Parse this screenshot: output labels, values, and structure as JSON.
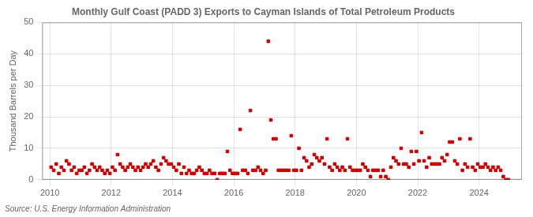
{
  "chart_data": {
    "type": "scatter",
    "title": "Monthly Gulf Coast (PADD 3) Exports to Cayman Islands of Total Petroleum Products",
    "y_label": "Thousand Barrels per Day",
    "annotations": [
      "Source: U.S. Energy Information Administration"
    ],
    "color": "#cc0000",
    "marker": "square",
    "grid": true,
    "xlim": [
      2009.75,
      2025.4
    ],
    "xticks": [
      2010,
      2012,
      2014,
      2016,
      2018,
      2020,
      2022,
      2024
    ],
    "ylim": [
      0,
      50
    ],
    "yticks": [
      0,
      10,
      20,
      30,
      40,
      50
    ],
    "x": [
      2010.041666666667,
      2010.125,
      2010.208333333333,
      2010.291666666667,
      2010.375,
      2010.458333333333,
      2010.541666666667,
      2010.625,
      2010.708333333333,
      2010.791666666667,
      2010.875,
      2010.958333333333,
      2011.041666666667,
      2011.125,
      2011.208333333333,
      2011.291666666667,
      2011.375,
      2011.458333333333,
      2011.541666666667,
      2011.625,
      2011.708333333333,
      2011.791666666667,
      2011.875,
      2011.958333333333,
      2012.041666666667,
      2012.125,
      2012.208333333333,
      2012.291666666667,
      2012.375,
      2012.458333333333,
      2012.541666666667,
      2012.625,
      2012.708333333333,
      2012.791666666667,
      2012.875,
      2012.958333333333,
      2013.041666666667,
      2013.125,
      2013.208333333333,
      2013.291666666667,
      2013.375,
      2013.458333333333,
      2013.541666666667,
      2013.625,
      2013.708333333333,
      2013.791666666667,
      2013.875,
      2013.958333333333,
      2014.041666666667,
      2014.125,
      2014.208333333333,
      2014.291666666667,
      2014.375,
      2014.458333333333,
      2014.541666666667,
      2014.625,
      2014.708333333333,
      2014.791666666667,
      2014.875,
      2014.958333333333,
      2015.041666666667,
      2015.125,
      2015.208333333333,
      2015.291666666667,
      2015.375,
      2015.458333333333,
      2015.541666666667,
      2015.625,
      2015.708333333333,
      2015.791666666667,
      2015.875,
      2015.958333333333,
      2016.041666666667,
      2016.125,
      2016.208333333333,
      2016.291666666667,
      2016.375,
      2016.458333333333,
      2016.541666666667,
      2016.625,
      2016.708333333333,
      2016.791666666667,
      2016.875,
      2016.958333333333,
      2017.041666666667,
      2017.125,
      2017.208333333333,
      2017.291666666667,
      2017.375,
      2017.458333333333,
      2017.541666666667,
      2017.625,
      2017.708333333333,
      2017.791666666667,
      2017.875,
      2017.958333333333,
      2018.041666666667,
      2018.125,
      2018.208333333333,
      2018.291666666667,
      2018.375,
      2018.458333333333,
      2018.541666666667,
      2018.625,
      2018.708333333333,
      2018.791666666667,
      2018.875,
      2018.958333333333,
      2019.041666666667,
      2019.125,
      2019.208333333333,
      2019.291666666667,
      2019.375,
      2019.458333333333,
      2019.541666666667,
      2019.625,
      2019.708333333333,
      2019.791666666667,
      2019.875,
      2019.958333333333,
      2020.041666666667,
      2020.125,
      2020.208333333333,
      2020.291666666667,
      2020.375,
      2020.458333333333,
      2020.541666666667,
      2020.625,
      2020.708333333333,
      2020.791666666667,
      2020.875,
      2020.958333333333,
      2021.041666666667,
      2021.125,
      2021.208333333333,
      2021.291666666667,
      2021.375,
      2021.458333333333,
      2021.541666666667,
      2021.625,
      2021.708333333333,
      2021.791666666667,
      2021.875,
      2021.958333333333,
      2022.041666666667,
      2022.125,
      2022.208333333333,
      2022.291666666667,
      2022.375,
      2022.458333333333,
      2022.541666666667,
      2022.625,
      2022.708333333333,
      2022.791666666667,
      2022.875,
      2022.958333333333,
      2023.041666666667,
      2023.125,
      2023.208333333333,
      2023.291666666667,
      2023.375,
      2023.458333333333,
      2023.541666666667,
      2023.625,
      2023.708333333333,
      2023.791666666667,
      2023.875,
      2023.958333333333,
      2024.041666666667,
      2024.125,
      2024.208333333333,
      2024.291666666667,
      2024.375,
      2024.458333333333,
      2024.541666666667,
      2024.625,
      2024.708333333333,
      2024.791666666667,
      2024.875,
      2024.958333333333
    ],
    "values": [
      4,
      3,
      5,
      2,
      4,
      3,
      6,
      5,
      3,
      4,
      2,
      3,
      3,
      4,
      2,
      3,
      5,
      4,
      3,
      4,
      3,
      2,
      3,
      2,
      4,
      3,
      8,
      5,
      4,
      3,
      4,
      5,
      4,
      3,
      4,
      3,
      4,
      5,
      4,
      5,
      6,
      4,
      3,
      5,
      7,
      6,
      5,
      5,
      4,
      3,
      5,
      2,
      4,
      2,
      3,
      2,
      2,
      3,
      4,
      3,
      2,
      2,
      3,
      2,
      2,
      0,
      2,
      2,
      2,
      9,
      3,
      2,
      2,
      2,
      16,
      3,
      3,
      2,
      22,
      3,
      3,
      4,
      3,
      2,
      3,
      44,
      19,
      13,
      13,
      3,
      3,
      3,
      3,
      3,
      14,
      3,
      3,
      10,
      3,
      7,
      6,
      4,
      5,
      8,
      7,
      6,
      7,
      5,
      13,
      4,
      3,
      5,
      4,
      3,
      4,
      3,
      13,
      4,
      3,
      3,
      3,
      3,
      5,
      4,
      3,
      1,
      3,
      3,
      3,
      1,
      3,
      1,
      0,
      4,
      7,
      6,
      5,
      10,
      5,
      5,
      4,
      9,
      5,
      9,
      6,
      15,
      6,
      4,
      7,
      5,
      5,
      5,
      5,
      7,
      6,
      8,
      12,
      12,
      6,
      5,
      13,
      3,
      5,
      4,
      13,
      4,
      3,
      5,
      4,
      4,
      5,
      4,
      3,
      4,
      3,
      4,
      3,
      1,
      0,
      0
    ]
  }
}
